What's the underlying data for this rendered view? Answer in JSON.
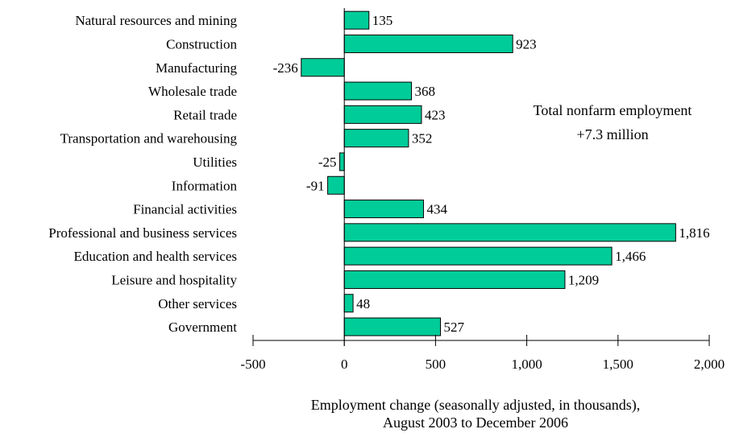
{
  "chart_data": {
    "type": "bar",
    "orientation": "horizontal",
    "categories": [
      "Natural resources and mining",
      "Construction",
      "Manufacturing",
      "Wholesale trade",
      "Retail trade",
      "Transportation and warehousing",
      "Utilities",
      "Information",
      "Financial activities",
      "Professional and business services",
      "Education and health services",
      "Leisure and hospitality",
      "Other services",
      "Government"
    ],
    "values": [
      135,
      923,
      -236,
      368,
      423,
      352,
      -25,
      -91,
      434,
      1816,
      1466,
      1209,
      48,
      527
    ],
    "value_labels": [
      "135",
      "923",
      "-236",
      "368",
      "423",
      "352",
      "-25",
      "-91",
      "434",
      "1,816",
      "1,466",
      "1,209",
      "48",
      "527"
    ],
    "xlim": [
      -500,
      2000
    ],
    "xticks": [
      -500,
      0,
      500,
      1000,
      1500,
      2000
    ],
    "xtick_labels": [
      "-500",
      "0",
      "500",
      "1,000",
      "1,500",
      "2,000"
    ],
    "xlabel_line1": "Employment change (seasonally adjusted, in thousands),",
    "xlabel_line2": "August 2003 to December 2006",
    "annotation_line1": "Total nonfarm employment",
    "annotation_line2": "+7.3 million",
    "bar_color": "#00CC99",
    "grid": false
  }
}
